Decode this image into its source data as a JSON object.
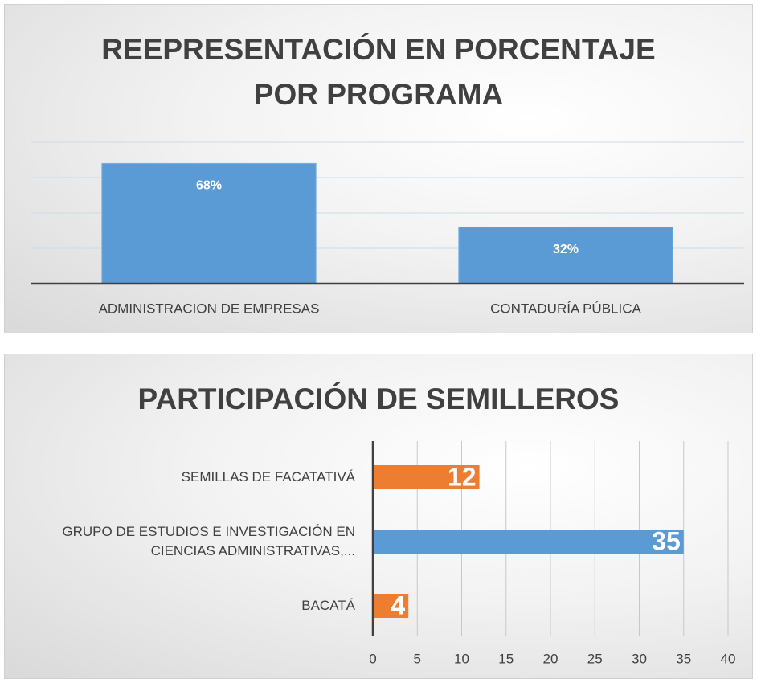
{
  "chart_data": [
    {
      "type": "bar",
      "title": "REEPRESENTACIÓN EN PORCENTAJE POR PROGRAMA",
      "categories": [
        "ADMINISTRACION DE EMPRESAS",
        "CONTADURÍA PÚBLICA"
      ],
      "values": [
        68,
        32
      ],
      "value_labels": [
        "68%",
        "32%"
      ],
      "color": "#5b9bd5",
      "ylim": [
        0,
        80
      ],
      "yticks": [
        0,
        20,
        40,
        60,
        80
      ],
      "grid": true
    },
    {
      "type": "barh",
      "title": "PARTICIPACIÓN DE SEMILLEROS",
      "categories": [
        "SEMILLAS DE FACATATIVÁ",
        "GRUPO DE ESTUDIOS E INVESTIGACIÓN EN CIENCIAS ADMINISTRATIVAS,...",
        "BACATÁ"
      ],
      "values": [
        12,
        35,
        4
      ],
      "colors": [
        "#ed7d31",
        "#5b9bd5",
        "#ed7d31"
      ],
      "xlim": [
        0,
        40
      ],
      "xticks": [
        0,
        5,
        10,
        15,
        20,
        25,
        30,
        35,
        40
      ],
      "grid": true
    }
  ]
}
